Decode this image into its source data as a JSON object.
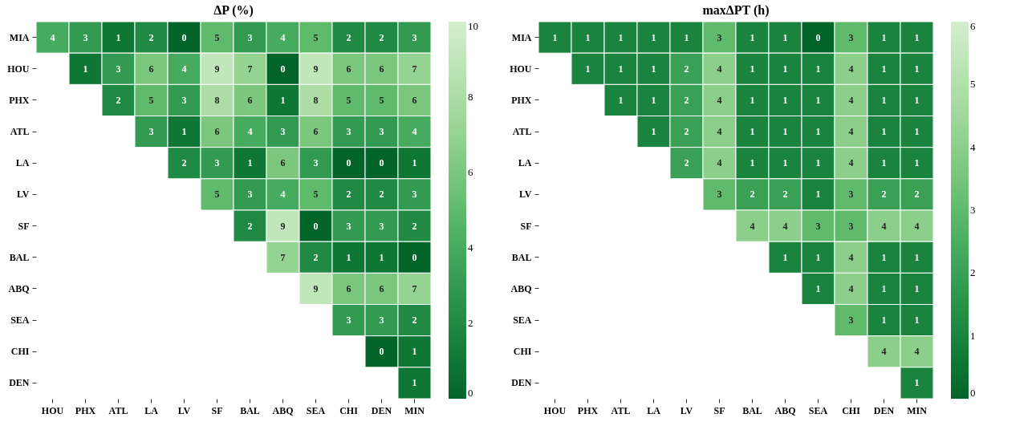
{
  "chart_data": [
    {
      "type": "heatmap",
      "title": "ΔP (%)",
      "categories": [
        "HOU",
        "PHX",
        "ATL",
        "LA",
        "LV",
        "SF",
        "BAL",
        "ABQ",
        "SEA",
        "CHI",
        "DEN",
        "MIN"
      ],
      "y_categories": [
        "MIA",
        "HOU",
        "PHX",
        "ATL",
        "LA",
        "LV",
        "SF",
        "BAL",
        "ABQ",
        "SEA",
        "CHI",
        "DEN"
      ],
      "cells": [
        [
          4,
          3,
          1,
          2,
          0,
          5,
          3,
          4,
          5,
          2,
          2,
          3
        ],
        [
          null,
          1,
          3,
          6,
          4,
          9,
          7,
          0,
          9,
          6,
          6,
          7
        ],
        [
          null,
          null,
          2,
          5,
          3,
          8,
          6,
          1,
          8,
          5,
          5,
          6
        ],
        [
          null,
          null,
          null,
          3,
          1,
          6,
          4,
          3,
          6,
          3,
          3,
          4
        ],
        [
          null,
          null,
          null,
          null,
          2,
          3,
          1,
          6,
          3,
          0,
          0,
          1
        ],
        [
          null,
          null,
          null,
          null,
          null,
          5,
          3,
          4,
          5,
          2,
          2,
          3
        ],
        [
          null,
          null,
          null,
          null,
          null,
          null,
          2,
          9,
          0,
          3,
          3,
          2
        ],
        [
          null,
          null,
          null,
          null,
          null,
          null,
          null,
          7,
          2,
          1,
          1,
          0
        ],
        [
          null,
          null,
          null,
          null,
          null,
          null,
          null,
          null,
          9,
          6,
          6,
          7
        ],
        [
          null,
          null,
          null,
          null,
          null,
          null,
          null,
          null,
          null,
          3,
          3,
          2
        ],
        [
          null,
          null,
          null,
          null,
          null,
          null,
          null,
          null,
          null,
          null,
          0,
          1
        ],
        [
          null,
          null,
          null,
          null,
          null,
          null,
          null,
          null,
          null,
          null,
          null,
          1
        ]
      ],
      "clim": [
        0,
        10
      ],
      "cticks": [
        0,
        2,
        4,
        6,
        8,
        10
      ],
      "data_labels": true
    },
    {
      "type": "heatmap",
      "title": "maxΔPT (h)",
      "categories": [
        "HOU",
        "PHX",
        "ATL",
        "LA",
        "LV",
        "SF",
        "BAL",
        "ABQ",
        "SEA",
        "CHI",
        "DEN",
        "MIN"
      ],
      "y_categories": [
        "MIA",
        "HOU",
        "PHX",
        "ATL",
        "LA",
        "LV",
        "SF",
        "BAL",
        "ABQ",
        "SEA",
        "CHI",
        "DEN"
      ],
      "cells": [
        [
          1,
          1,
          1,
          1,
          1,
          3,
          1,
          1,
          0,
          3,
          1,
          1
        ],
        [
          null,
          1,
          1,
          1,
          2,
          4,
          1,
          1,
          1,
          4,
          1,
          1
        ],
        [
          null,
          null,
          1,
          1,
          2,
          4,
          1,
          1,
          1,
          4,
          1,
          1
        ],
        [
          null,
          null,
          null,
          1,
          2,
          4,
          1,
          1,
          1,
          4,
          1,
          1
        ],
        [
          null,
          null,
          null,
          null,
          2,
          4,
          1,
          1,
          1,
          4,
          1,
          1
        ],
        [
          null,
          null,
          null,
          null,
          null,
          3,
          2,
          2,
          1,
          3,
          2,
          2
        ],
        [
          null,
          null,
          null,
          null,
          null,
          null,
          4,
          4,
          3,
          3,
          4,
          4
        ],
        [
          null,
          null,
          null,
          null,
          null,
          null,
          null,
          1,
          1,
          4,
          1,
          1
        ],
        [
          null,
          null,
          null,
          null,
          null,
          null,
          null,
          null,
          1,
          4,
          1,
          1
        ],
        [
          null,
          null,
          null,
          null,
          null,
          null,
          null,
          null,
          null,
          3,
          1,
          1
        ],
        [
          null,
          null,
          null,
          null,
          null,
          null,
          null,
          null,
          null,
          null,
          4,
          4
        ],
        [
          null,
          null,
          null,
          null,
          null,
          null,
          null,
          null,
          null,
          null,
          null,
          1
        ]
      ],
      "clim": [
        0,
        6
      ],
      "cticks": [
        0,
        1,
        2,
        3,
        4,
        5,
        6
      ],
      "data_labels": true
    }
  ]
}
